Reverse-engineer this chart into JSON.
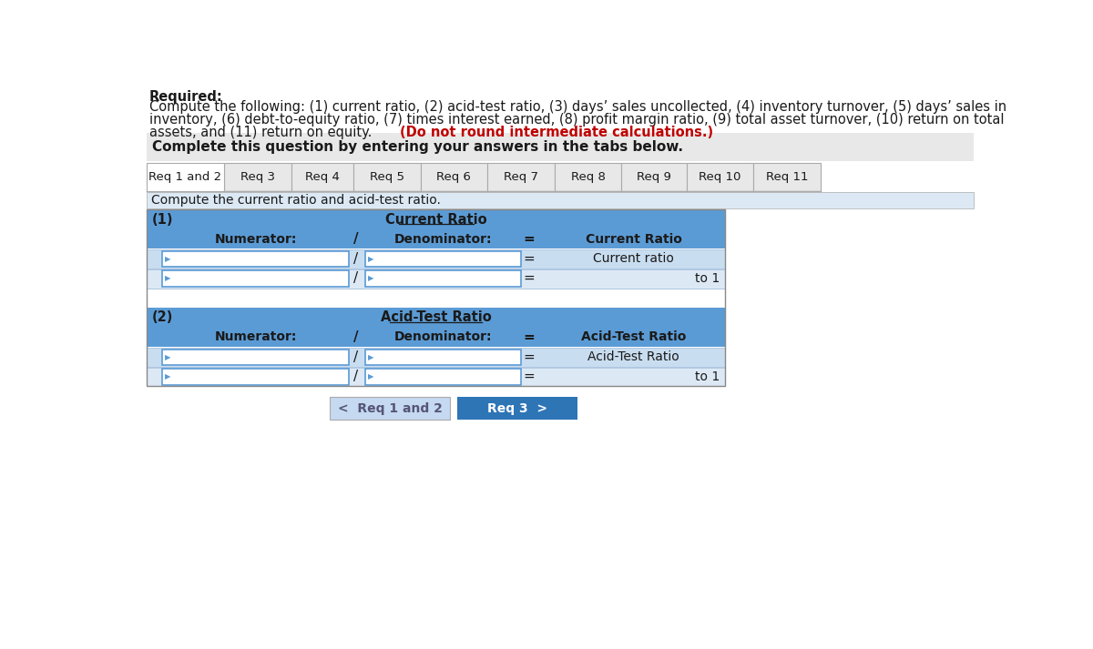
{
  "title_bold": "Required:",
  "title_text": "Compute the following: (1) current ratio, (2) acid-test ratio, (3) days' sales uncollected, (4) inventory turnover, (5) days' sales in\ninventory, (6) debt-to-equity ratio, (7) times interest earned, (8) profit margin ratio, (9) total asset turnover, (10) return on total\nassets, and (11) return on equity.",
  "title_red": "(Do not round intermediate calculations.)",
  "complete_text": "Complete this question by entering your answers in the tabs below.",
  "tabs": [
    "Req 1 and 2",
    "Req 3",
    "Req 4",
    "Req 5",
    "Req 6",
    "Req 7",
    "Req 8",
    "Req 9",
    "Req 10",
    "Req 11"
  ],
  "active_tab": 0,
  "sub_instruction": "Compute the current ratio and acid-test ratio.",
  "section1_label": "(1)",
  "section1_title": "Current Ratio",
  "section2_label": "(2)",
  "section2_title": "Acid-Test Ratio",
  "header_bg": "#5b9bd5",
  "row_bg": "#dce6f1",
  "input_bg": "#ffffff",
  "tab_active_bg": "#ffffff",
  "tab_inactive_bg": "#e8e8e8",
  "tab_border": "#b0b0b0",
  "light_blue_bg": "#dce9f5",
  "gray_bg": "#e0e0e0",
  "button_active_bg": "#2e75b6",
  "button_inactive_bg": "#c5d9f1",
  "section_bg": "#5b9bd5",
  "outer_bg": "#ffffff",
  "text_dark": "#1a1a1a",
  "text_white": "#ffffff",
  "tab_widths": [
    110,
    95,
    88,
    95,
    95,
    95,
    95,
    92,
    95,
    95
  ]
}
